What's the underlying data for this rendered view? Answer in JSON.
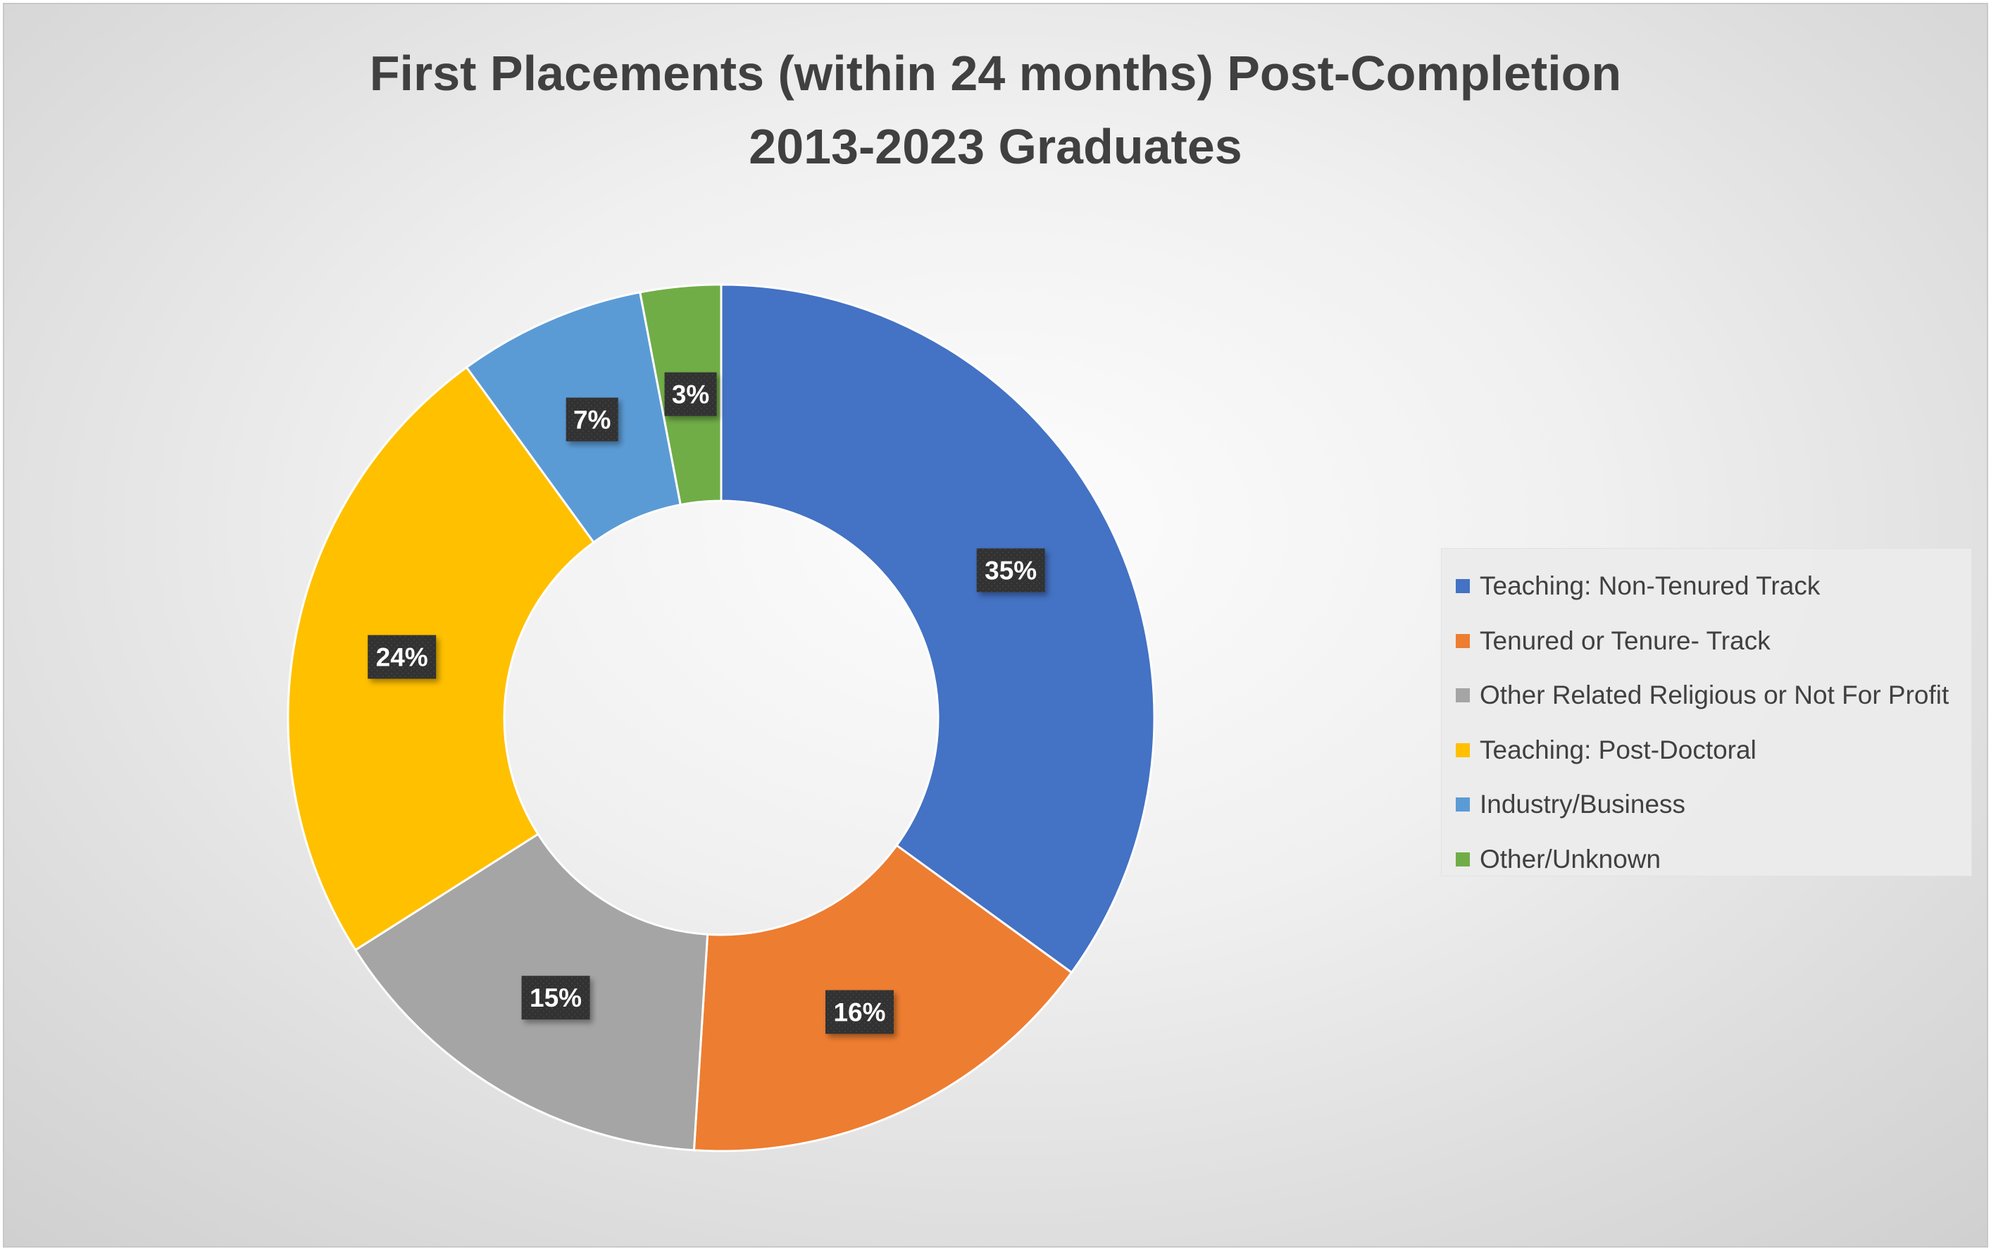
{
  "chart_data": {
    "type": "pie",
    "title_lines": [
      "First Placements (within 24 months) Post-Completion",
      "2013-2023 Graduates"
    ],
    "donut": true,
    "legend_position": "right",
    "slices": [
      {
        "label": "Teaching: Non-Tenured Track",
        "value": 35,
        "display": "35%",
        "color": "#4472C4"
      },
      {
        "label": "Tenured or Tenure- Track",
        "value": 16,
        "display": "16%",
        "color": "#ED7D31"
      },
      {
        "label": "Other Related Religious or Not For Profit",
        "value": 15,
        "display": "15%",
        "color": "#A5A5A5"
      },
      {
        "label": "Teaching: Post-Doctoral",
        "value": 24,
        "display": "24%",
        "color": "#FFC000"
      },
      {
        "label": "Industry/Business",
        "value": 7,
        "display": "7%",
        "color": "#5B9BD5"
      },
      {
        "label": "Other/Unknown",
        "value": 3,
        "display": "3%",
        "color": "#70AD47"
      }
    ]
  }
}
